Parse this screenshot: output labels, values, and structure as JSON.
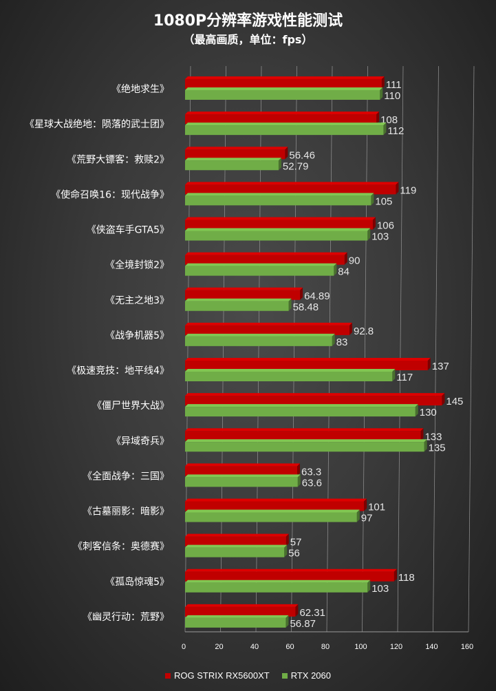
{
  "chart_data": {
    "type": "bar",
    "orientation": "horizontal",
    "title": "1080P分辨率游戏性能测试",
    "subtitle": "（最高画质，单位：fps）",
    "categories": [
      "《绝地求生》",
      "《星球大战绝地：陨落的武士团》",
      "《荒野大镖客：救赎2》",
      "《使命召唤16：现代战争》",
      "《侠盗车手GTA5》",
      "《全境封锁2》",
      "《无主之地3》",
      "《战争机器5》",
      "《极速竞技：地平线4》",
      "《僵尸世界大战》",
      "《异域奇兵》",
      "《全面战争：三国》",
      "《古墓丽影：暗影》",
      "《刺客信条：奥德赛》",
      "《孤岛惊魂5》",
      "《幽灵行动：荒野》"
    ],
    "series": [
      {
        "name": "ROG STRIX RX5600XT",
        "color": "#c00000",
        "values": [
          111,
          108,
          56.46,
          119,
          106,
          90,
          64.89,
          92.8,
          137,
          145,
          133,
          63.3,
          101,
          57,
          118,
          62.31
        ],
        "labels": [
          "111",
          "108",
          "56.46",
          "119",
          "106",
          "90",
          "64.89",
          "92.8",
          "137",
          "145",
          "133",
          "63.3",
          "101",
          "57",
          "118",
          "62.31"
        ]
      },
      {
        "name": "RTX 2060",
        "color": "#70ad47",
        "values": [
          110,
          112,
          52.79,
          105,
          103,
          84,
          58.48,
          83,
          117,
          130,
          135,
          63.6,
          97,
          56,
          103,
          56.87
        ],
        "labels": [
          "110",
          "112",
          "52.79",
          "105",
          "103",
          "84",
          "58.48",
          "83",
          "117",
          "130",
          "135",
          "63.6",
          "97",
          "56",
          "103",
          "56.87"
        ]
      }
    ],
    "xlim": [
      0,
      160
    ],
    "xticks": [
      "0",
      "20",
      "40",
      "60",
      "80",
      "100",
      "120",
      "140",
      "160"
    ],
    "grid": true,
    "legend_position": "bottom"
  }
}
